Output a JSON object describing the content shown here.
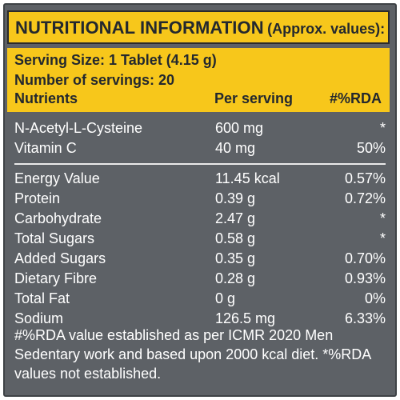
{
  "title": {
    "main": "NUTRITIONAL INFORMATION",
    "sub": "(Approx. values):"
  },
  "serving": {
    "size": "Serving Size: 1 Tablet (4.15 g)",
    "count": "Number of servings: 20"
  },
  "columns": {
    "nutrients": "Nutrients",
    "per_serving": "Per serving",
    "rda": "#%RDA"
  },
  "group1": [
    {
      "name": "N-Acetyl-L-Cysteine",
      "amount": "600 mg",
      "rda": "*"
    },
    {
      "name": "Vitamin C",
      "amount": "40 mg",
      "rda": "50%"
    }
  ],
  "group2": [
    {
      "name": "Energy Value",
      "amount": "11.45 kcal",
      "rda": "0.57%"
    },
    {
      "name": "Protein",
      "amount": "0.39 g",
      "rda": "0.72%"
    },
    {
      "name": "Carbohydrate",
      "amount": "2.47 g",
      "rda": "*"
    },
    {
      "name": "Total Sugars",
      "amount": "0.58 g",
      "rda": "*"
    },
    {
      "name": "Added Sugars",
      "amount": "0.35 g",
      "rda": "0.70%"
    },
    {
      "name": "Dietary Fibre",
      "amount": "0.28 g",
      "rda": "0.93%"
    },
    {
      "name": "Total Fat",
      "amount": "0 g",
      "rda": "0%"
    },
    {
      "name": "Sodium",
      "amount": "126.5 mg",
      "rda": "6.33%"
    }
  ],
  "footnote": [
    "#%RDA value established as per ICMR 2020 Men",
    "Sedentary work and based upon 2000 kcal diet. *%RDA",
    "values not established."
  ],
  "colors": {
    "panel": "#5d6166",
    "header_yellow": "#f7c71b",
    "header_text": "#23282e",
    "body_text": "#ffffff"
  }
}
